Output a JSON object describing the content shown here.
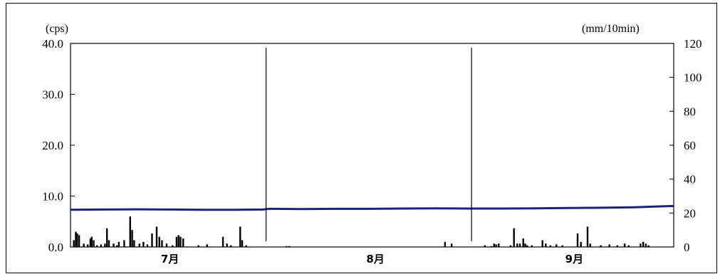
{
  "chart_data": {
    "type": "line",
    "title": "",
    "xlabel": "",
    "ylabel": "(cps)",
    "y2label": "(mm/10min)",
    "ylim": [
      0,
      40
    ],
    "y2lim": [
      0,
      120
    ],
    "y_ticks": [
      "0.0",
      "10.0",
      "20.0",
      "30.0",
      "40.0"
    ],
    "y2_ticks": [
      "0",
      "20",
      "40",
      "60",
      "80",
      "100",
      "120"
    ],
    "x_range_days": [
      0,
      91
    ],
    "month_labels": [
      "7月",
      "8月",
      "9月"
    ],
    "month_label_days": [
      15,
      46,
      76
    ],
    "month_boundaries_days": [
      29.5,
      60.5
    ],
    "grid": false,
    "series": [
      {
        "axis": "left",
        "color": "#1a237e",
        "style": "line",
        "points": [
          [
            0,
            7.3
          ],
          [
            5,
            7.35
          ],
          [
            10,
            7.4
          ],
          [
            15,
            7.35
          ],
          [
            20,
            7.3
          ],
          [
            25,
            7.3
          ],
          [
            29,
            7.35
          ],
          [
            30,
            7.5
          ],
          [
            35,
            7.45
          ],
          [
            40,
            7.5
          ],
          [
            45,
            7.5
          ],
          [
            50,
            7.55
          ],
          [
            55,
            7.6
          ],
          [
            60,
            7.55
          ],
          [
            65,
            7.55
          ],
          [
            70,
            7.6
          ],
          [
            75,
            7.65
          ],
          [
            80,
            7.7
          ],
          [
            85,
            7.8
          ],
          [
            88,
            7.95
          ],
          [
            91,
            8.05
          ]
        ]
      },
      {
        "axis": "right",
        "color": "#000000",
        "style": "bar",
        "points": [
          [
            0.5,
            4
          ],
          [
            0.8,
            9
          ],
          [
            1.0,
            8
          ],
          [
            1.3,
            7
          ],
          [
            2.0,
            2
          ],
          [
            2.6,
            1.5
          ],
          [
            3.0,
            5
          ],
          [
            3.2,
            6
          ],
          [
            3.5,
            4
          ],
          [
            4.0,
            1
          ],
          [
            4.6,
            1.5
          ],
          [
            5.2,
            2
          ],
          [
            5.5,
            11
          ],
          [
            5.8,
            4
          ],
          [
            6.5,
            2
          ],
          [
            7.0,
            1
          ],
          [
            7.3,
            3
          ],
          [
            8.1,
            4
          ],
          [
            9.0,
            18
          ],
          [
            9.3,
            10
          ],
          [
            9.6,
            4
          ],
          [
            10.4,
            2
          ],
          [
            11.0,
            3
          ],
          [
            11.6,
            1.5
          ],
          [
            12.3,
            8
          ],
          [
            13.0,
            12
          ],
          [
            13.4,
            6
          ],
          [
            13.8,
            4
          ],
          [
            14.5,
            2
          ],
          [
            15.4,
            1
          ],
          [
            16.0,
            6
          ],
          [
            16.3,
            7
          ],
          [
            16.6,
            6
          ],
          [
            17.0,
            5
          ],
          [
            19.3,
            1
          ],
          [
            20.6,
            1.5
          ],
          [
            23.0,
            6
          ],
          [
            23.6,
            2
          ],
          [
            24.2,
            1
          ],
          [
            25.6,
            12
          ],
          [
            25.9,
            4
          ],
          [
            26.5,
            1
          ],
          [
            32.6,
            0.5
          ],
          [
            33.0,
            0.5
          ],
          [
            56.5,
            3
          ],
          [
            57.5,
            2
          ],
          [
            62.5,
            1
          ],
          [
            63.5,
            0.5
          ],
          [
            63.9,
            2
          ],
          [
            64.2,
            1.5
          ],
          [
            64.6,
            2
          ],
          [
            66.4,
            1
          ],
          [
            66.9,
            11
          ],
          [
            67.4,
            2
          ],
          [
            67.8,
            2
          ],
          [
            68.3,
            5
          ],
          [
            68.6,
            2
          ],
          [
            68.9,
            1
          ],
          [
            69.6,
            1
          ],
          [
            71.2,
            4
          ],
          [
            71.7,
            2
          ],
          [
            72.4,
            1
          ],
          [
            73.3,
            1.5
          ],
          [
            74.2,
            1
          ],
          [
            76.5,
            8
          ],
          [
            77.0,
            3
          ],
          [
            78.0,
            12
          ],
          [
            78.4,
            2
          ],
          [
            80.0,
            1
          ],
          [
            81.3,
            1.5
          ],
          [
            82.5,
            1
          ],
          [
            83.6,
            2
          ],
          [
            84.2,
            1
          ],
          [
            86.0,
            2
          ],
          [
            86.4,
            3
          ],
          [
            86.8,
            2
          ],
          [
            87.2,
            1
          ]
        ]
      }
    ]
  }
}
